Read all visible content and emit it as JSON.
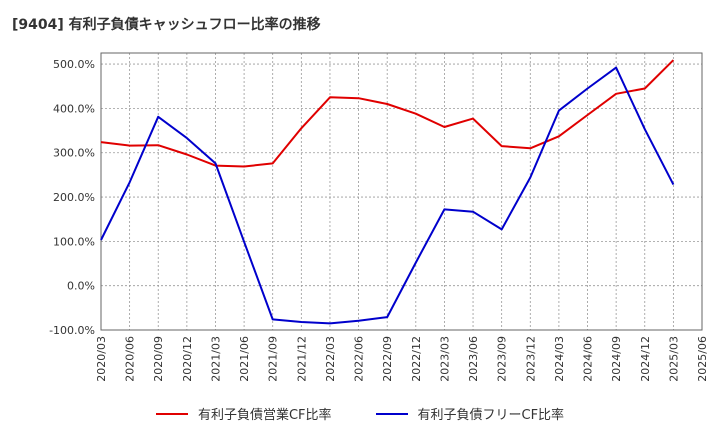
{
  "chart_data": {
    "type": "line",
    "title": "[9404]  有利子負債キャッシュフロー比率の推移",
    "xlabel": "",
    "ylabel": "",
    "ylim": [
      -100,
      525
    ],
    "yticks": [
      -100,
      0,
      100,
      200,
      300,
      400,
      500
    ],
    "ytick_labels": [
      "-100.0%",
      "0.0%",
      "100.0%",
      "200.0%",
      "300.0%",
      "400.0%",
      "500.0%"
    ],
    "categories": [
      "2020/03",
      "2020/06",
      "2020/09",
      "2020/12",
      "2021/03",
      "2021/06",
      "2021/09",
      "2021/12",
      "2022/03",
      "2022/06",
      "2022/09",
      "2022/12",
      "2023/03",
      "2023/06",
      "2023/09",
      "2023/12",
      "2024/03",
      "2024/06",
      "2024/09",
      "2024/12",
      "2025/03",
      "2025/06"
    ],
    "series": [
      {
        "name": "有利子負債営業CF比率",
        "color": "#e00000",
        "values": [
          324,
          316,
          317,
          296,
          271,
          269,
          276,
          355,
          425,
          423,
          410,
          388,
          358,
          377,
          315,
          310,
          337,
          385,
          433,
          445,
          509,
          null
        ]
      },
      {
        "name": "有利子負債フリーCF比率",
        "color": "#0000cc",
        "values": [
          103,
          233,
          381,
          333,
          276,
          99,
          -76,
          -82,
          -85,
          -79,
          -71,
          52,
          172,
          167,
          127,
          244,
          395,
          445,
          492,
          353,
          228,
          null
        ]
      }
    ],
    "grid": true,
    "legend_position": "bottom"
  }
}
